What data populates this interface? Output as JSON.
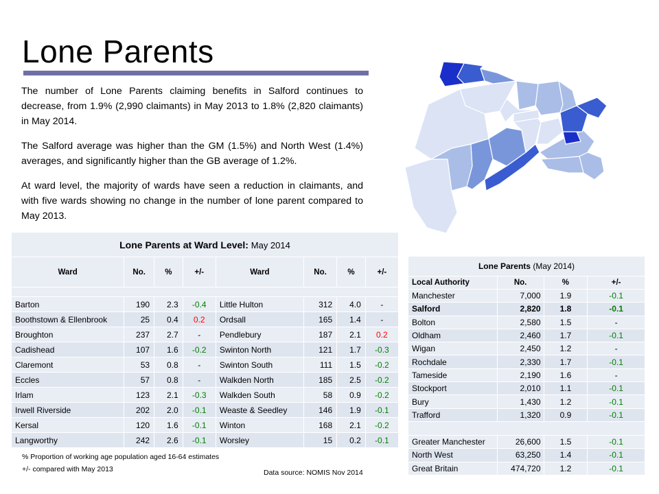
{
  "title": "Lone Parents",
  "intro": [
    "The number of Lone Parents claiming benefits in Salford continues to decrease, from 1.9% (2,990 claimants) in May 2013 to 1.8% (2,820 claimants) in May 2014.",
    "The Salford average was higher than the GM (1.5%) and North West (1.4%) averages, and significantly higher than the GB average of 1.2%.",
    "At ward level, the majority of wards have seen a reduction in claimants, and with five wards showing no change in the number of lone parent compared to May 2013."
  ],
  "colors": {
    "title_rule": "#6f6fa6",
    "table_bg": "#e9edf4",
    "table_bg_alt": "#dfe5ef",
    "increase": "#ff0000",
    "decrease": "#008000",
    "map_darkest": "#1a2fc9",
    "map_dark": "#3a5cd1",
    "map_mid": "#7a96db",
    "map_light": "#a9bde7",
    "map_lightest": "#dbe3f5"
  },
  "ward_table": {
    "title": "Lone Parents at Ward Level:",
    "subtitle": "May 2014",
    "columns": [
      "Ward",
      "No.",
      "%",
      "+/-",
      "Ward",
      "No.",
      "%",
      "+/-"
    ],
    "rows": [
      {
        "w1": "Barton",
        "n1": "190",
        "p1": "2.3",
        "c1": "-0.4",
        "w2": "Little Hulton",
        "n2": "312",
        "p2": "4.0",
        "c2": "-"
      },
      {
        "w1": "Boothstown & Ellenbrook",
        "n1": "25",
        "p1": "0.4",
        "c1": "0.2",
        "w2": "Ordsall",
        "n2": "165",
        "p2": "1.4",
        "c2": "-"
      },
      {
        "w1": "Broughton",
        "n1": "237",
        "p1": "2.7",
        "c1": "-",
        "w2": "Pendlebury",
        "n2": "187",
        "p2": "2.1",
        "c2": "0.2"
      },
      {
        "w1": "Cadishead",
        "n1": "107",
        "p1": "1.6",
        "c1": "-0.2",
        "w2": "Swinton North",
        "n2": "121",
        "p2": "1.7",
        "c2": "-0.3"
      },
      {
        "w1": "Claremont",
        "n1": "53",
        "p1": "0.8",
        "c1": "-",
        "w2": "Swinton South",
        "n2": "111",
        "p2": "1.5",
        "c2": "-0.2"
      },
      {
        "w1": "Eccles",
        "n1": "57",
        "p1": "0.8",
        "c1": "-",
        "w2": "Walkden North",
        "n2": "185",
        "p2": "2.5",
        "c2": "-0.2"
      },
      {
        "w1": "Irlam",
        "n1": "123",
        "p1": "2.1",
        "c1": "-0.3",
        "w2": "Walkden South",
        "n2": "58",
        "p2": "0.9",
        "c2": "-0.2"
      },
      {
        "w1": "Irwell Riverside",
        "n1": "202",
        "p1": "2.0",
        "c1": "-0.1",
        "w2": "Weaste & Seedley",
        "n2": "146",
        "p2": "1.9",
        "c2": "-0.1"
      },
      {
        "w1": "Kersal",
        "n1": "120",
        "p1": "1.6",
        "c1": "-0.1",
        "w2": "Winton",
        "n2": "168",
        "p2": "2.1",
        "c2": "-0.2"
      },
      {
        "w1": "Langworthy",
        "n1": "242",
        "p1": "2.6",
        "c1": "-0.1",
        "w2": "Worsley",
        "n2": "15",
        "p2": "0.2",
        "c2": "-0.1"
      }
    ]
  },
  "footnotes": {
    "pct": "% Proportion of working age population aged 16-64 estimates",
    "change": "+/- compared with  May 2013",
    "source": "Data source: NOMIS  Nov 2014"
  },
  "la_table": {
    "title": "Lone Parents",
    "subtitle": "(May 2014)",
    "columns": [
      "Local Authority",
      "No.",
      "%",
      "+/-"
    ],
    "rows": [
      {
        "name": "Manchester",
        "no": "7,000",
        "pct": "1.9",
        "chg": "-0.1",
        "bold": false
      },
      {
        "name": "Salford",
        "no": "2,820",
        "pct": "1.8",
        "chg": "-0.1",
        "bold": true
      },
      {
        "name": "Bolton",
        "no": "2,580",
        "pct": "1.5",
        "chg": "-",
        "bold": false
      },
      {
        "name": "Oldham",
        "no": "2,460",
        "pct": "1.7",
        "chg": "-0.1",
        "bold": false
      },
      {
        "name": "Wigan",
        "no": "2,450",
        "pct": "1.2",
        "chg": "-",
        "bold": false
      },
      {
        "name": "Rochdale",
        "no": "2,330",
        "pct": "1.7",
        "chg": "-0.1",
        "bold": false
      },
      {
        "name": "Tameside",
        "no": "2,190",
        "pct": "1.6",
        "chg": "-",
        "bold": false
      },
      {
        "name": "Stockport",
        "no": "2,010",
        "pct": "1.1",
        "chg": "-0.1",
        "bold": false
      },
      {
        "name": "Bury",
        "no": "1,430",
        "pct": "1.2",
        "chg": "-0.1",
        "bold": false
      },
      {
        "name": "Trafford",
        "no": "1,320",
        "pct": "0.9",
        "chg": "-0.1",
        "bold": false
      }
    ],
    "summary": [
      {
        "name": "Greater Manchester",
        "no": "26,600",
        "pct": "1.5",
        "chg": "-0.1"
      },
      {
        "name": "North West",
        "no": "63,250",
        "pct": "1.4",
        "chg": "-0.1"
      },
      {
        "name": "Great Britain",
        "no": "474,720",
        "pct": "1.2",
        "chg": "-0.1"
      }
    ]
  }
}
